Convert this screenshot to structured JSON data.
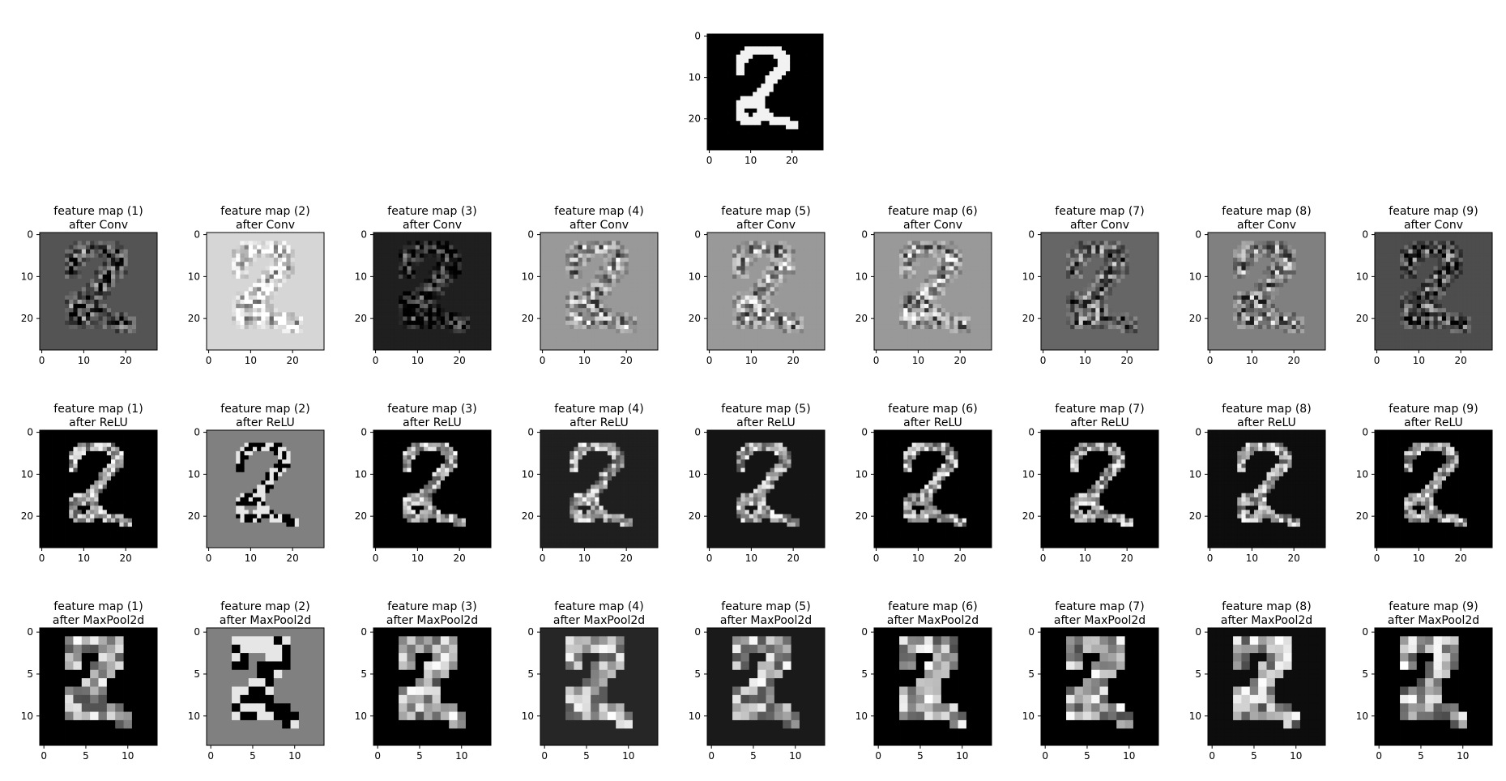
{
  "figure": {
    "background": "#ffffff",
    "colormap": "gray"
  },
  "chart_data": [
    {
      "type": "heatmap",
      "panel": "input-image",
      "title": "",
      "colormap": "gray",
      "x_ticks": [
        "0",
        "10",
        "20"
      ],
      "y_ticks": [
        "0",
        "10",
        "20"
      ],
      "xlim": [
        0,
        28
      ],
      "ylim": [
        28,
        0
      ],
      "description_values": "28x28 grayscale digit '2' on black background"
    },
    {
      "type": "heatmap",
      "row": "conv",
      "panel_titles": [
        "feature map (1)\nafter Conv",
        "feature map (2)\nafter Conv",
        "feature map (3)\nafter Conv",
        "feature map (4)\nafter Conv",
        "feature map (5)\nafter Conv",
        "feature map (6)\nafter Conv",
        "feature map (7)\nafter Conv",
        "feature map (8)\nafter Conv",
        "feature map (9)\nafter Conv"
      ],
      "x_ticks": [
        "0",
        "10",
        "20"
      ],
      "y_ticks": [
        "0",
        "10",
        "20"
      ],
      "backgrounds": [
        0.33,
        0.84,
        0.12,
        0.6,
        0.6,
        0.6,
        0.4,
        0.5,
        0.3
      ]
    },
    {
      "type": "heatmap",
      "row": "relu",
      "panel_titles": [
        "feature map (1)\nafter ReLU",
        "feature map (2)\nafter ReLU",
        "feature map (3)\nafter ReLU",
        "feature map (4)\nafter ReLU",
        "feature map (5)\nafter ReLU",
        "feature map (6)\nafter ReLU",
        "feature map (7)\nafter ReLU",
        "feature map (8)\nafter ReLU",
        "feature map (9)\nafter ReLU"
      ],
      "x_ticks": [
        "0",
        "10",
        "20"
      ],
      "y_ticks": [
        "0",
        "10",
        "20"
      ],
      "backgrounds": [
        0.0,
        0.5,
        0.0,
        0.12,
        0.08,
        0.0,
        0.0,
        0.05,
        0.0
      ]
    },
    {
      "type": "heatmap",
      "row": "maxpool",
      "panel_titles": [
        "feature map (1)\nafter MaxPool2d",
        "feature map (2)\nafter MaxPool2d",
        "feature map (3)\nafter MaxPool2d",
        "feature map (4)\nafter MaxPool2d",
        "feature map (5)\nafter MaxPool2d",
        "feature map (6)\nafter MaxPool2d",
        "feature map (7)\nafter MaxPool2d",
        "feature map (8)\nafter MaxPool2d",
        "feature map (9)\nafter MaxPool2d"
      ],
      "x_ticks": [
        "0",
        "5",
        "10"
      ],
      "y_ticks": [
        "0",
        "5",
        "10"
      ],
      "backgrounds": [
        0.0,
        0.5,
        0.0,
        0.15,
        0.1,
        0.0,
        0.0,
        0.05,
        0.0
      ]
    }
  ]
}
